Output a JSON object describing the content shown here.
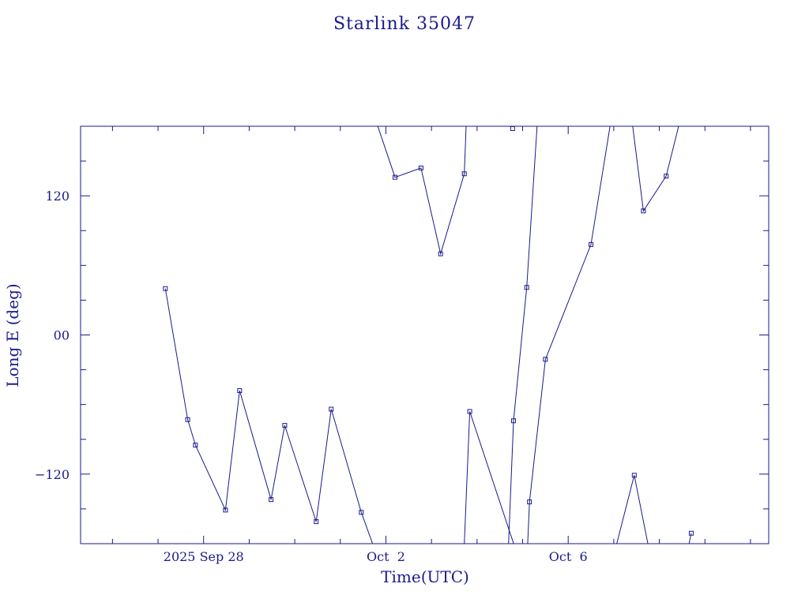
{
  "chart_data": {
    "type": "line",
    "title": "Starlink 35047",
    "xlabel": "Time(UTC)",
    "ylabel": "Long E (deg)",
    "color": "#1a1a8c",
    "x_tick_labels": [
      {
        "x": 27.4,
        "label": "2025 Sep 28"
      },
      {
        "x": 31.4,
        "label": "Oct  2"
      },
      {
        "x": 35.4,
        "label": "Oct  6"
      }
    ],
    "y_tick_labels": [
      {
        "y": 120,
        "label": "120"
      },
      {
        "y": 0,
        "label": "00"
      },
      {
        "y": -120,
        "label": "−120"
      }
    ],
    "xlim": [
      24.7,
      39.8
    ],
    "ylim": [
      -180,
      180
    ],
    "grid": false,
    "segments": [
      [
        [
          26.56,
          40
        ],
        [
          27.05,
          -73
        ],
        [
          27.22,
          -95
        ],
        [
          27.88,
          -151
        ],
        [
          28.19,
          -48
        ],
        [
          28.88,
          -142
        ],
        [
          29.18,
          -78
        ],
        [
          29.87,
          -161
        ],
        [
          30.2,
          -64
        ],
        [
          30.86,
          -153
        ],
        [
          31.2,
          -190
        ]
      ],
      [
        [
          31.05,
          200
        ],
        [
          31.6,
          136
        ],
        [
          32.17,
          144
        ],
        [
          32.6,
          70
        ],
        [
          33.12,
          139
        ],
        [
          33.18,
          200
        ]
      ],
      [
        [
          33.1,
          -200
        ],
        [
          33.24,
          -66
        ],
        [
          34.22,
          -182
        ]
      ],
      [
        [
          34.18,
          178
        ]
      ],
      [
        [
          34.08,
          -190
        ],
        [
          34.2,
          -74
        ],
        [
          34.49,
          41
        ],
        [
          34.75,
          200
        ]
      ],
      [
        [
          34.5,
          -190
        ],
        [
          34.55,
          -144
        ],
        [
          34.9,
          -21
        ],
        [
          35.9,
          78
        ],
        [
          36.4,
          200
        ]
      ],
      [
        [
          36.4,
          -190
        ],
        [
          36.85,
          -121
        ],
        [
          37.2,
          -190
        ]
      ],
      [
        [
          36.75,
          200
        ],
        [
          37.05,
          107
        ],
        [
          37.55,
          137
        ],
        [
          37.95,
          200
        ]
      ],
      [
        [
          38.0,
          -190
        ],
        [
          38.1,
          -171
        ]
      ]
    ]
  }
}
